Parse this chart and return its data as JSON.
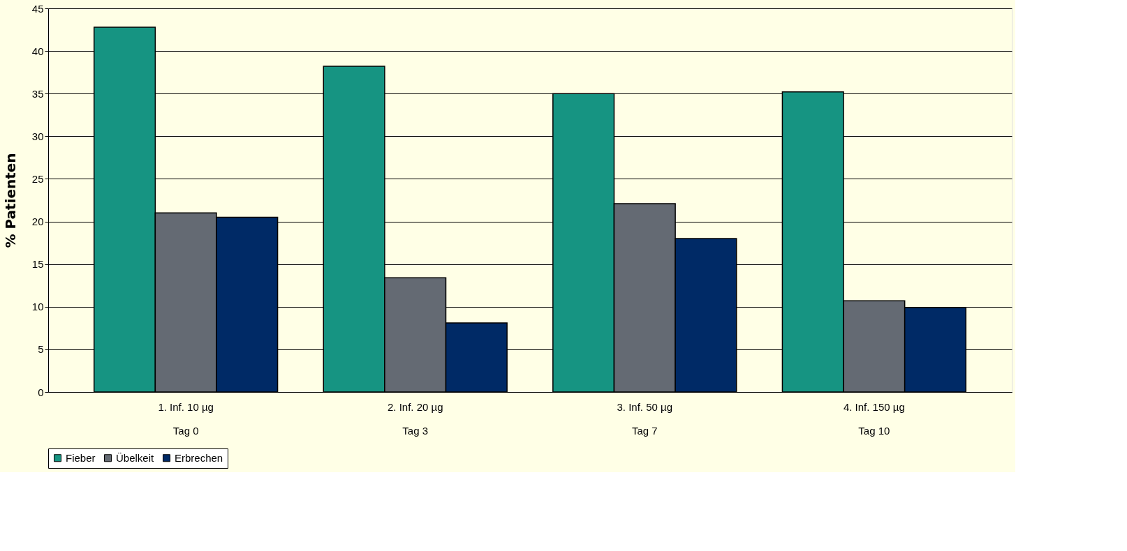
{
  "chart_data": {
    "type": "bar",
    "ylabel": "% Patienten",
    "categories": [
      "1. Inf. 10 µg\nTag 0",
      "2. Inf. 20 µg\nTag 3",
      "3. Inf. 50 µg\nTag 7",
      "4. Inf. 150 µg\nTag 10"
    ],
    "series": [
      {
        "name": "Fieber",
        "color": "#169482",
        "values": [
          42.8,
          38.2,
          35.0,
          35.2
        ]
      },
      {
        "name": "Übelkeit",
        "color": "#646a73",
        "values": [
          21.0,
          13.4,
          22.1,
          10.7
        ]
      },
      {
        "name": "Erbrechen",
        "color": "#002a66",
        "values": [
          20.5,
          8.1,
          18.0,
          9.9
        ]
      }
    ],
    "ylim": [
      0,
      45
    ],
    "yticks": [
      0,
      5,
      10,
      15,
      20,
      25,
      30,
      35,
      40,
      45
    ],
    "grid": "y",
    "legend": "bottom"
  }
}
